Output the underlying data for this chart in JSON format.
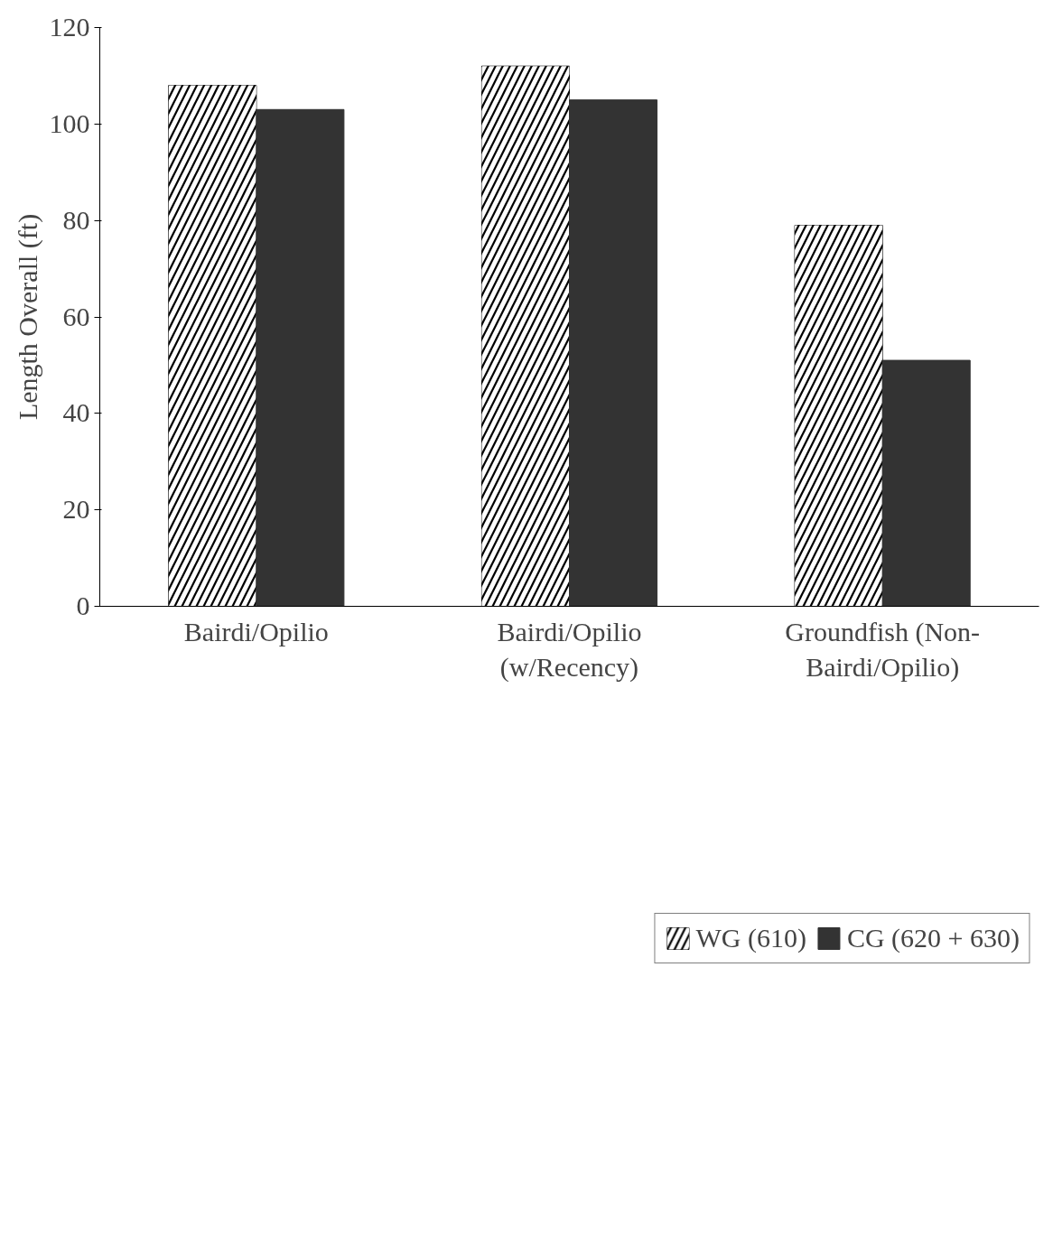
{
  "chart_data": {
    "type": "bar",
    "ylabel": "Length Overall (ft)",
    "categories": [
      "Bairdi/Opilio",
      "Bairdi/Opilio\n(w/Recency)",
      "Groundfish (Non-\nBairdi/Opilio)"
    ],
    "series": [
      {
        "name": "WG (610)",
        "color": "#000000",
        "values": [
          108,
          112,
          79
        ]
      },
      {
        "name": "CG (620 + 630)",
        "color": "#333333",
        "values": [
          103,
          105,
          51
        ]
      }
    ],
    "ylim": [
      0,
      120
    ],
    "yticks": [
      0,
      20,
      40,
      60,
      80,
      100,
      120
    ],
    "grid": false,
    "legend": "bottom"
  }
}
